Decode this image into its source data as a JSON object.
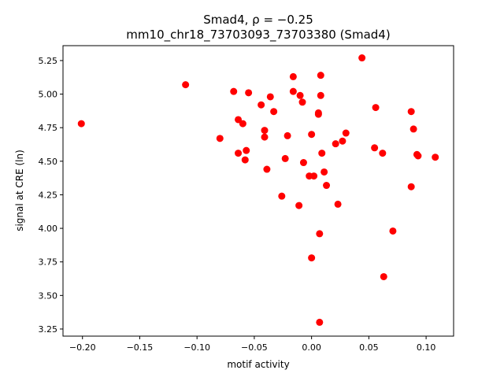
{
  "chart_data": {
    "type": "scatter",
    "title": "Smad4, ρ = −0.25",
    "subtitle": "mm10_chr18_73703093_73703380 (Smad4)",
    "xlabel": "motif activity",
    "ylabel": "signal at CRE (ln)",
    "xlim": [
      -0.217,
      0.124
    ],
    "ylim": [
      3.197,
      5.361
    ],
    "xticks": [
      -0.2,
      -0.15,
      -0.1,
      -0.05,
      0.0,
      0.05,
      0.1
    ],
    "xtick_labels": [
      "−0.20",
      "−0.15",
      "−0.10",
      "−0.05",
      "0.00",
      "0.05",
      "0.10"
    ],
    "yticks": [
      3.25,
      3.5,
      3.75,
      4.0,
      4.25,
      4.5,
      4.75,
      5.0,
      5.25
    ],
    "ytick_labels": [
      "3.25",
      "3.50",
      "3.75",
      "4.00",
      "4.25",
      "4.50",
      "4.75",
      "5.00",
      "5.25"
    ],
    "grid": false,
    "marker_color": "#ff0000",
    "points": [
      [
        -0.201,
        4.78
      ],
      [
        -0.11,
        5.07
      ],
      [
        -0.08,
        4.67
      ],
      [
        -0.068,
        5.02
      ],
      [
        -0.064,
        4.81
      ],
      [
        -0.06,
        4.78
      ],
      [
        -0.055,
        5.01
      ],
      [
        -0.064,
        4.56
      ],
      [
        -0.057,
        4.58
      ],
      [
        -0.058,
        4.51
      ],
      [
        -0.044,
        4.92
      ],
      [
        -0.036,
        4.98
      ],
      [
        -0.033,
        4.87
      ],
      [
        -0.041,
        4.73
      ],
      [
        -0.041,
        4.68
      ],
      [
        -0.039,
        4.44
      ],
      [
        -0.026,
        4.24
      ],
      [
        -0.023,
        4.52
      ],
      [
        -0.021,
        4.69
      ],
      [
        -0.016,
        5.13
      ],
      [
        -0.016,
        5.02
      ],
      [
        -0.01,
        4.99
      ],
      [
        -0.008,
        4.94
      ],
      [
        -0.011,
        4.17
      ],
      [
        -0.007,
        4.49
      ],
      [
        -0.002,
        4.39
      ],
      [
        0.002,
        4.39
      ],
      [
        0.0,
        4.7
      ],
      [
        0.006,
        4.86
      ],
      [
        0.006,
        4.85
      ],
      [
        0.008,
        5.14
      ],
      [
        0.008,
        4.99
      ],
      [
        0.009,
        4.56
      ],
      [
        0.011,
        4.42
      ],
      [
        0.013,
        4.32
      ],
      [
        0.007,
        3.96
      ],
      [
        0.0,
        3.78
      ],
      [
        0.007,
        3.3
      ],
      [
        0.021,
        4.63
      ],
      [
        0.027,
        4.65
      ],
      [
        0.03,
        4.71
      ],
      [
        0.023,
        4.18
      ],
      [
        0.044,
        5.27
      ],
      [
        0.056,
        4.9
      ],
      [
        0.055,
        4.6
      ],
      [
        0.062,
        4.56
      ],
      [
        0.063,
        3.64
      ],
      [
        0.071,
        3.98
      ],
      [
        0.087,
        4.87
      ],
      [
        0.089,
        4.74
      ],
      [
        0.087,
        4.31
      ],
      [
        0.092,
        4.55
      ],
      [
        0.093,
        4.54
      ],
      [
        0.108,
        4.53
      ]
    ]
  }
}
